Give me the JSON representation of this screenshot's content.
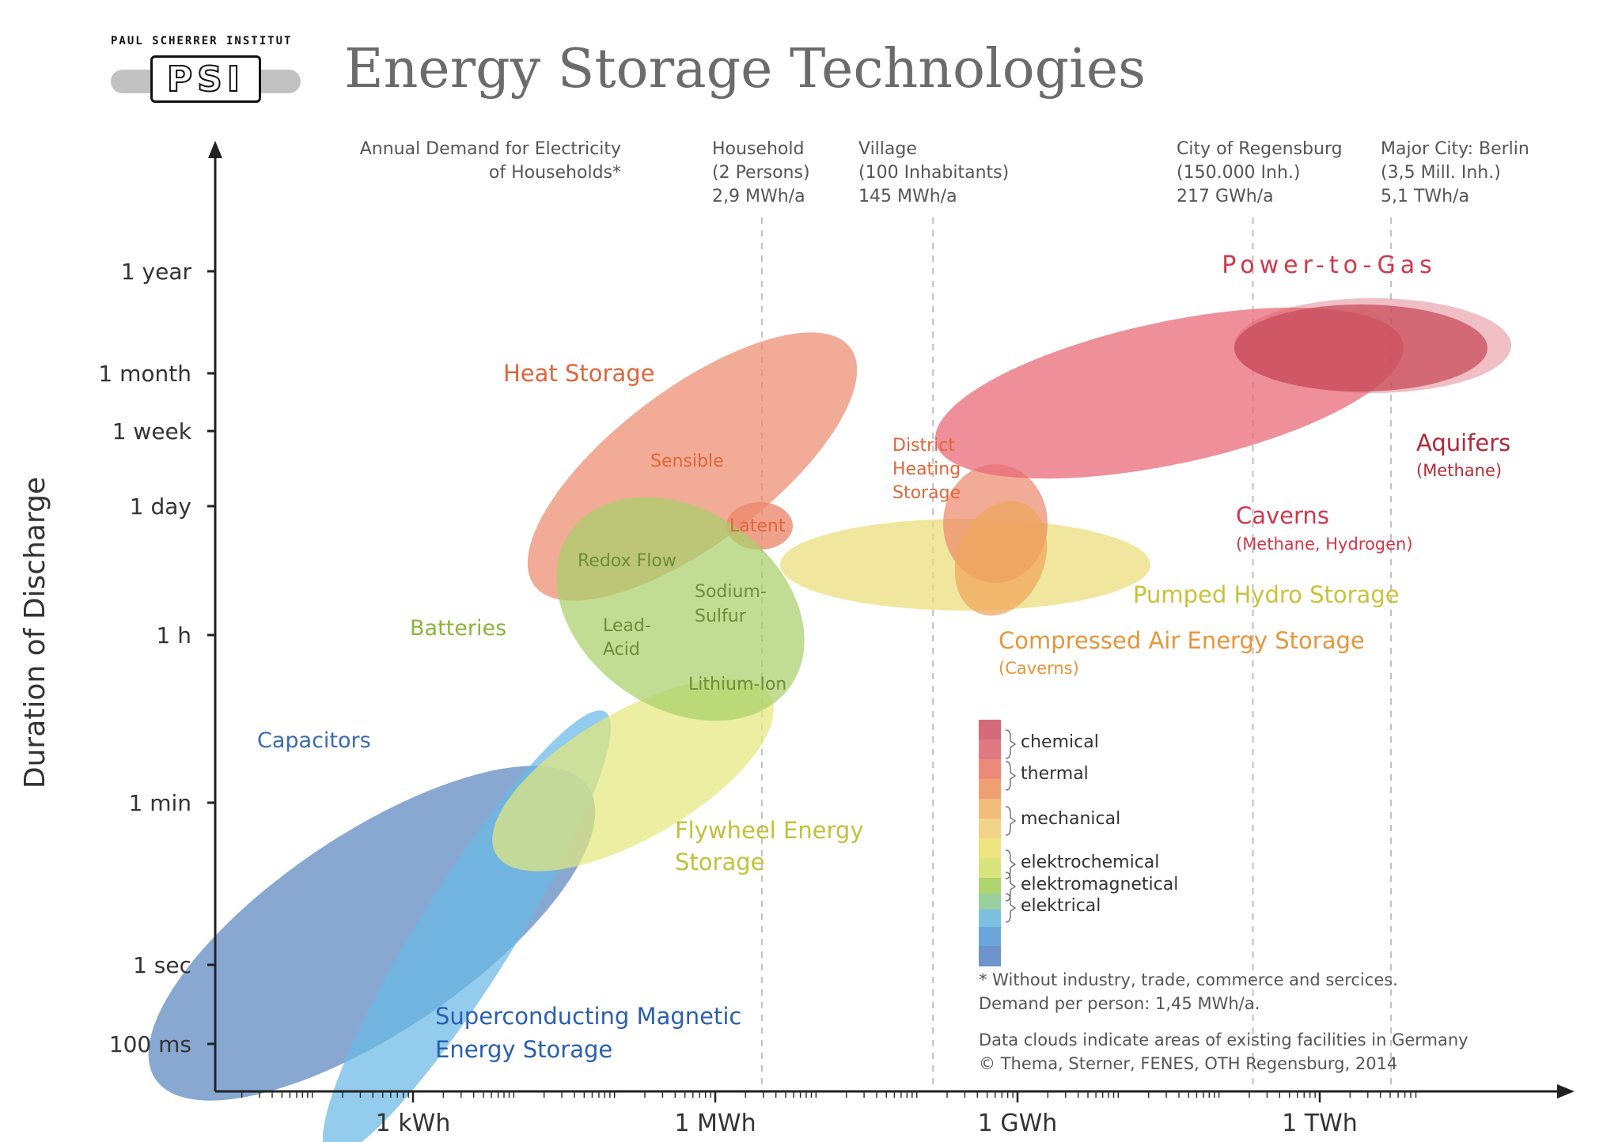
{
  "page": {
    "title": "Energy Storage Technologies",
    "logo_org": "PAUL SCHERRER INSTITUT",
    "logo_mark": "PSI"
  },
  "colors": {
    "chemical": "#d8606e",
    "chemical_dark": "#c0404f",
    "thermal": "#ec8a6e",
    "mechanical_orange": "#f0a55a",
    "mechanical_yellow": "#ecdc78",
    "flywheel": "#e4e87a",
    "elektrochemical": "#a8d06a",
    "elektromagnetical": "#6ab8e4",
    "elektrical": "#5a86c0",
    "axis": "#222222",
    "text": "#444444"
  },
  "chart_data": {
    "type": "scatter",
    "title": "",
    "xlabel": "",
    "ylabel": "Duration of Discharge",
    "x_axis": {
      "scale": "log",
      "ticks": [
        {
          "label": "1 kWh",
          "value_wh": 1000
        },
        {
          "label": "1 MWh",
          "value_wh": 1000000
        },
        {
          "label": "1 GWh",
          "value_wh": 1000000000
        },
        {
          "label": "1 TWh",
          "value_wh": 1000000000000
        }
      ]
    },
    "y_axis": {
      "scale": "log",
      "ticks": [
        {
          "label": "1 year",
          "seconds": 31536000
        },
        {
          "label": "1 month",
          "seconds": 2592000
        },
        {
          "label": "1 week",
          "seconds": 604800
        },
        {
          "label": "1 day",
          "seconds": 86400
        },
        {
          "label": "1 h",
          "seconds": 3600
        },
        {
          "label": "1 min",
          "seconds": 60
        },
        {
          "label": "1 sec",
          "seconds": 1
        },
        {
          "label": "100 ms",
          "seconds": 0.1
        }
      ]
    },
    "reference_lines": [
      {
        "lines": [
          "Household",
          "(2 Persons)",
          "2,9 MWh/a"
        ],
        "value_wh": 2900000
      },
      {
        "lines": [
          "Village",
          "(100 Inhabitants)",
          "145 MWh/a"
        ],
        "value_wh": 145000000
      },
      {
        "lines": [
          "City of Regensburg",
          "(150.000 Inh.)",
          "217 GWh/a"
        ],
        "value_wh": 217000000000
      },
      {
        "lines": [
          "Major City: Berlin",
          "(3,5 Mill. Inh.)",
          "5,1 TWh/a"
        ],
        "value_wh": 5100000000000
      }
    ],
    "reference_header": [
      "Annual Demand for Electricity",
      "of Households*"
    ],
    "categories_top_label": "Power-to-Gas",
    "series": [
      {
        "name": "Capacitors",
        "category": "elektrical"
      },
      {
        "name": "Superconducting Magnetic Energy Storage",
        "category": "elektromagnetical"
      },
      {
        "name": "Flywheel Energy Storage",
        "category": "mechanical"
      },
      {
        "name": "Batteries",
        "category": "elektrochemical",
        "members": [
          "Redox Flow",
          "Sodium-Sulfur",
          "Lead-Acid",
          "Lithium-Ion"
        ]
      },
      {
        "name": "Heat Storage",
        "category": "thermal",
        "members": [
          "Sensible",
          "Latent"
        ]
      },
      {
        "name": "District Heating Storage",
        "category": "thermal"
      },
      {
        "name": "Pumped Hydro Storage",
        "category": "mechanical"
      },
      {
        "name": "Compressed Air Energy Storage",
        "category": "mechanical",
        "note": "(Caverns)"
      },
      {
        "name": "Caverns",
        "category": "chemical",
        "note": "(Methane, Hydrogen)"
      },
      {
        "name": "Aquifers",
        "category": "chemical",
        "note": "(Methane)"
      }
    ],
    "legend": {
      "position": "lower-center",
      "items": [
        "chemical",
        "thermal",
        "mechanical",
        "elektrochemical",
        "elektromagnetical",
        "elektrical"
      ]
    },
    "notes": [
      "* Without industry, trade, commerce and sercices.",
      "Demand per person: 1,45 MWh/a.",
      "Data clouds indicate areas of existing facilities in Germany",
      "© Thema, Sterner, FENES, OTH Regensburg,  2014"
    ],
    "grid": false
  }
}
